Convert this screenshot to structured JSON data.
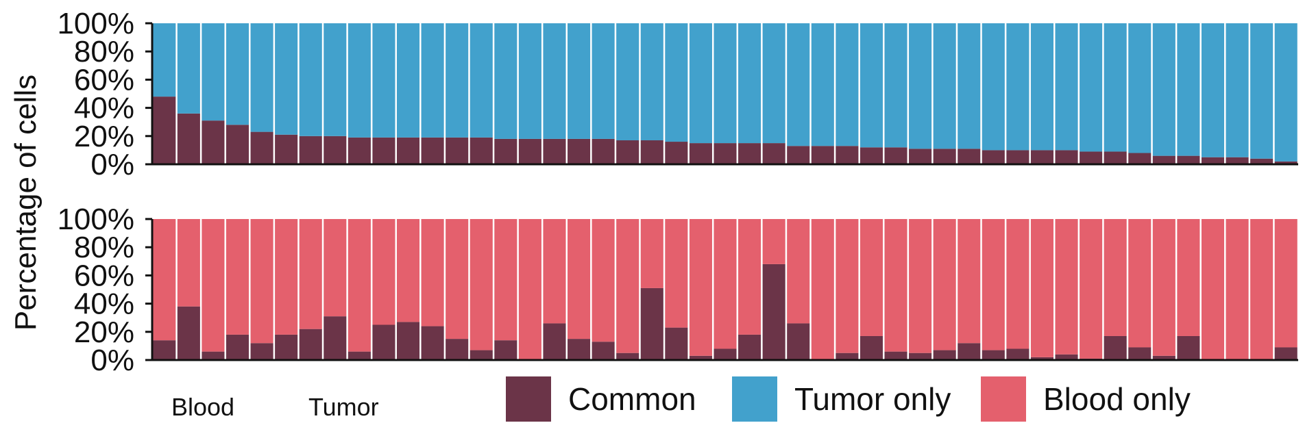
{
  "chart_data": [
    {
      "type": "bar",
      "stacked": true,
      "panel": "top",
      "ylabel": "Percentage of cells",
      "ylim": [
        0,
        100
      ],
      "yticks": [
        "0%",
        "20%",
        "40%",
        "60%",
        "80%",
        "100%"
      ],
      "series": [
        {
          "name": "Common",
          "color": "#6b3448",
          "values": [
            48,
            36,
            31,
            28,
            23,
            21,
            20,
            20,
            19,
            19,
            19,
            19,
            19,
            19,
            18,
            18,
            18,
            18,
            18,
            17,
            17,
            16,
            15,
            15,
            15,
            15,
            13,
            13,
            13,
            12,
            12,
            11,
            11,
            11,
            10,
            10,
            10,
            10,
            9,
            9,
            8,
            6,
            6,
            5,
            5,
            4,
            2
          ]
        },
        {
          "name": "Tumor only",
          "color": "#42a1cc",
          "values": [
            52,
            64,
            69,
            72,
            77,
            79,
            80,
            80,
            81,
            81,
            81,
            81,
            81,
            81,
            82,
            82,
            82,
            82,
            82,
            83,
            83,
            84,
            85,
            85,
            85,
            85,
            87,
            87,
            87,
            88,
            88,
            89,
            89,
            89,
            90,
            90,
            90,
            90,
            91,
            91,
            92,
            94,
            94,
            95,
            95,
            96,
            98
          ]
        }
      ]
    },
    {
      "type": "bar",
      "stacked": true,
      "panel": "bottom",
      "ylabel": "Percentage of cells",
      "ylim": [
        0,
        100
      ],
      "yticks": [
        "0%",
        "20%",
        "40%",
        "60%",
        "80%",
        "100%"
      ],
      "series": [
        {
          "name": "Common",
          "color": "#6b3448",
          "values": [
            14,
            38,
            6,
            18,
            12,
            18,
            22,
            31,
            6,
            25,
            27,
            24,
            15,
            7,
            14,
            0,
            26,
            15,
            13,
            5,
            51,
            23,
            3,
            8,
            18,
            68,
            26,
            0,
            5,
            17,
            6,
            5,
            7,
            12,
            7,
            8,
            2,
            4,
            1,
            17,
            9,
            3,
            17,
            0,
            0,
            0,
            9
          ]
        },
        {
          "name": "Blood only",
          "color": "#e4606d",
          "values": [
            86,
            62,
            94,
            82,
            88,
            82,
            78,
            69,
            94,
            75,
            73,
            76,
            85,
            93,
            86,
            100,
            74,
            85,
            87,
            95,
            49,
            77,
            97,
            92,
            82,
            32,
            74,
            100,
            95,
            83,
            94,
            95,
            93,
            88,
            93,
            92,
            98,
            96,
            99,
            83,
            91,
            97,
            83,
            100,
            100,
            100,
            91
          ]
        }
      ]
    }
  ],
  "group_labels": {
    "blood": "Blood",
    "tumor": "Tumor"
  },
  "legend": [
    {
      "label": "Common",
      "color": "#6b3448"
    },
    {
      "label": "Tumor only",
      "color": "#42a1cc"
    },
    {
      "label": "Blood only",
      "color": "#e4606d"
    }
  ]
}
